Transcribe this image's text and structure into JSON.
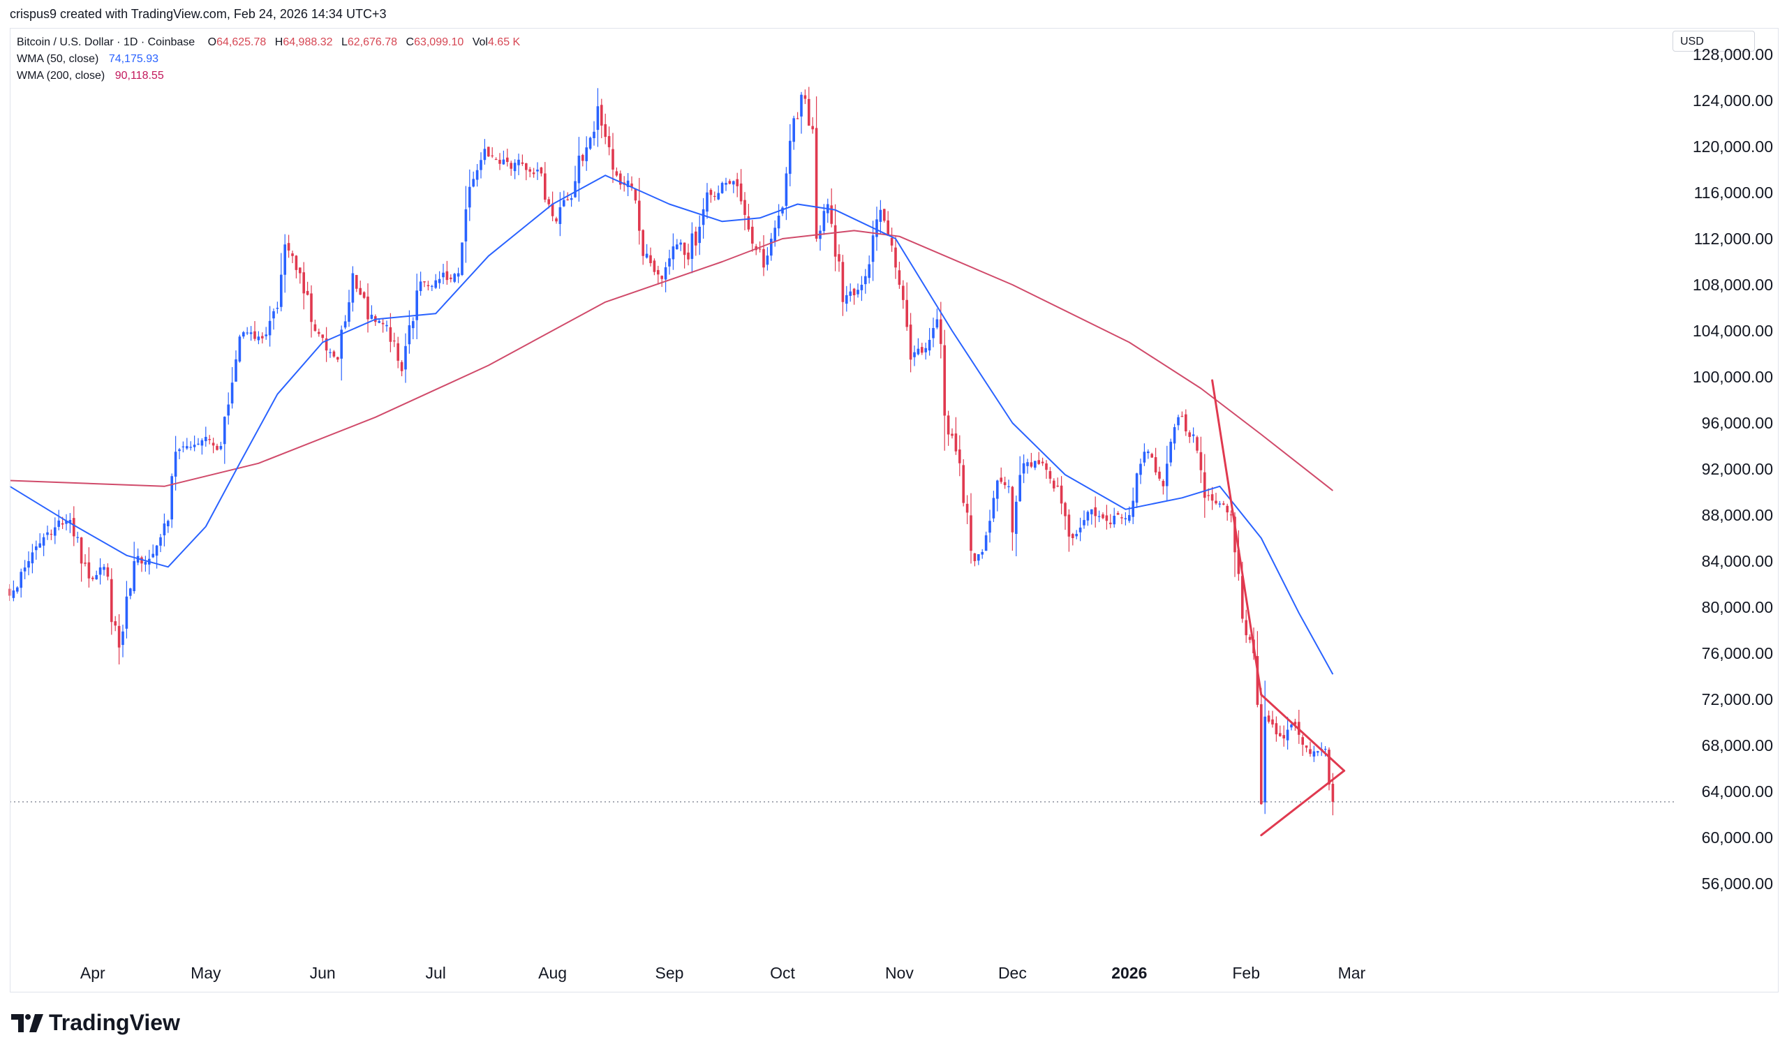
{
  "header": {
    "created_by": "crispus9 created with TradingView.com, Feb 24, 2026 14:34 UTC+3"
  },
  "legend": {
    "symbol": "Bitcoin / U.S. Dollar · 1D · Coinbase",
    "open_label": "O",
    "open": "64,625.78",
    "high_label": "H",
    "high": "64,988.32",
    "low_label": "L",
    "low": "62,676.78",
    "close_label": "C",
    "close": "63,099.10",
    "vol_label": "Vol",
    "vol": "4.65 K",
    "wma50_label": "WMA (50, close)",
    "wma50_value": "74,175.93",
    "wma200_label": "WMA (200, close)",
    "wma200_value": "90,118.55"
  },
  "currency": "USD",
  "brand": "TradingView",
  "colors": {
    "up": "#2962ff",
    "down": "#e0394f",
    "wma50": "#2962ff",
    "wma200": "#d04a6a",
    "trendline": "#e0394f",
    "legend_value": "#d64754",
    "wma50_legend": "#2962ff",
    "wma200_legend": "#c2185b"
  },
  "chart_data": {
    "type": "candlestick",
    "title": "Bitcoin / U.S. Dollar · 1D · Coinbase",
    "y_ticks": [
      "56,000.00",
      "60,000.00",
      "64,000.00",
      "68,000.00",
      "72,000.00",
      "76,000.00",
      "80,000.00",
      "84,000.00",
      "88,000.00",
      "92,000.00",
      "96,000.00",
      "100,000.00",
      "104,000.00",
      "108,000.00",
      "112,000.00",
      "116,000.00",
      "120,000.00",
      "124,000.00",
      "128,000.00"
    ],
    "y_range": [
      53000,
      131000
    ],
    "x_ticks": [
      {
        "label": "Apr",
        "date": "2025-04-01",
        "bold": false
      },
      {
        "label": "May",
        "date": "2025-05-01",
        "bold": false
      },
      {
        "label": "Jun",
        "date": "2025-06-01",
        "bold": false
      },
      {
        "label": "Jul",
        "date": "2025-07-01",
        "bold": false
      },
      {
        "label": "Aug",
        "date": "2025-08-01",
        "bold": false
      },
      {
        "label": "Sep",
        "date": "2025-09-01",
        "bold": false
      },
      {
        "label": "Oct",
        "date": "2025-10-01",
        "bold": false
      },
      {
        "label": "Nov",
        "date": "2025-11-01",
        "bold": false
      },
      {
        "label": "Dec",
        "date": "2025-12-01",
        "bold": false
      },
      {
        "label": "2026",
        "date": "2026-01-01",
        "bold": true
      },
      {
        "label": "Feb",
        "date": "2026-02-01",
        "bold": false
      },
      {
        "label": "Mar",
        "date": "2026-03-01",
        "bold": false
      }
    ],
    "close_anchors": [
      [
        "2025-03-10",
        81000
      ],
      [
        "2025-03-15",
        84000
      ],
      [
        "2025-03-20",
        86500
      ],
      [
        "2025-03-25",
        87500
      ],
      [
        "2025-03-31",
        82500
      ],
      [
        "2025-04-04",
        83500
      ],
      [
        "2025-04-08",
        76500
      ],
      [
        "2025-04-12",
        84000
      ],
      [
        "2025-04-16",
        84200
      ],
      [
        "2025-04-21",
        87500
      ],
      [
        "2025-04-23",
        93500
      ],
      [
        "2025-04-30",
        94500
      ],
      [
        "2025-05-05",
        94000
      ],
      [
        "2025-05-08",
        99500
      ],
      [
        "2025-05-10",
        103500
      ],
      [
        "2025-05-15",
        103500
      ],
      [
        "2025-05-20",
        106000
      ],
      [
        "2025-05-22",
        111500
      ],
      [
        "2025-05-26",
        109000
      ],
      [
        "2025-05-30",
        104000
      ],
      [
        "2025-06-05",
        101500
      ],
      [
        "2025-06-09",
        109000
      ],
      [
        "2025-06-13",
        105000
      ],
      [
        "2025-06-18",
        104500
      ],
      [
        "2025-06-22",
        100500
      ],
      [
        "2025-06-26",
        107500
      ],
      [
        "2025-07-02",
        108500
      ],
      [
        "2025-07-07",
        109000
      ],
      [
        "2025-07-10",
        116500
      ],
      [
        "2025-07-14",
        119800
      ],
      [
        "2025-07-18",
        118500
      ],
      [
        "2025-07-24",
        118500
      ],
      [
        "2025-07-28",
        118000
      ],
      [
        "2025-08-02",
        113500
      ],
      [
        "2025-08-07",
        117000
      ],
      [
        "2025-08-13",
        123500
      ],
      [
        "2025-08-17",
        118000
      ],
      [
        "2025-08-22",
        116500
      ],
      [
        "2025-08-25",
        110500
      ],
      [
        "2025-08-30",
        108500
      ],
      [
        "2025-09-03",
        111500
      ],
      [
        "2025-09-06",
        110200
      ],
      [
        "2025-09-12",
        115800
      ],
      [
        "2025-09-18",
        117000
      ],
      [
        "2025-09-22",
        112800
      ],
      [
        "2025-09-26",
        109500
      ],
      [
        "2025-09-30",
        114000
      ],
      [
        "2025-10-03",
        120500
      ],
      [
        "2025-10-06",
        124500
      ],
      [
        "2025-10-09",
        121500
      ],
      [
        "2025-10-10",
        112000
      ],
      [
        "2025-10-13",
        115000
      ],
      [
        "2025-10-17",
        106500
      ],
      [
        "2025-10-22",
        108000
      ],
      [
        "2025-10-27",
        114500
      ],
      [
        "2025-10-31",
        109500
      ],
      [
        "2025-11-04",
        101500
      ],
      [
        "2025-11-08",
        102500
      ],
      [
        "2025-11-11",
        105000
      ],
      [
        "2025-11-14",
        95000
      ],
      [
        "2025-11-17",
        92500
      ],
      [
        "2025-11-21",
        84000
      ],
      [
        "2025-11-25",
        87500
      ],
      [
        "2025-11-27",
        91000
      ],
      [
        "2025-11-30",
        90500
      ],
      [
        "2025-12-01",
        86500
      ],
      [
        "2025-12-04",
        92500
      ],
      [
        "2025-12-09",
        92500
      ],
      [
        "2025-12-13",
        90500
      ],
      [
        "2025-12-17",
        86000
      ],
      [
        "2025-12-22",
        88500
      ],
      [
        "2025-12-26",
        87500
      ],
      [
        "2026-01-01",
        88000
      ],
      [
        "2026-01-05",
        93500
      ],
      [
        "2026-01-10",
        90500
      ],
      [
        "2026-01-14",
        96500
      ],
      [
        "2026-01-18",
        95000
      ],
      [
        "2026-01-21",
        89500
      ],
      [
        "2026-01-25",
        89000
      ],
      [
        "2026-01-28",
        88000
      ],
      [
        "2026-01-31",
        79000
      ],
      [
        "2026-02-03",
        76000
      ],
      [
        "2026-02-05",
        62900
      ],
      [
        "2026-02-06",
        70500
      ],
      [
        "2026-02-10",
        68800
      ],
      [
        "2026-02-14",
        69800
      ],
      [
        "2026-02-17",
        67800
      ],
      [
        "2026-02-20",
        67500
      ],
      [
        "2026-02-22",
        67700
      ],
      [
        "2026-02-23",
        64600
      ],
      [
        "2026-02-24",
        63099
      ]
    ],
    "wma50": [
      [
        "2025-03-10",
        90500
      ],
      [
        "2025-03-25",
        87500
      ],
      [
        "2025-04-10",
        84500
      ],
      [
        "2025-04-21",
        83500
      ],
      [
        "2025-05-01",
        87000
      ],
      [
        "2025-05-10",
        92500
      ],
      [
        "2025-05-20",
        98500
      ],
      [
        "2025-06-01",
        103000
      ],
      [
        "2025-06-15",
        105000
      ],
      [
        "2025-07-01",
        105500
      ],
      [
        "2025-07-15",
        110500
      ],
      [
        "2025-08-01",
        115000
      ],
      [
        "2025-08-15",
        117500
      ],
      [
        "2025-09-01",
        115000
      ],
      [
        "2025-09-15",
        113500
      ],
      [
        "2025-09-25",
        113800
      ],
      [
        "2025-10-05",
        115000
      ],
      [
        "2025-10-15",
        114500
      ],
      [
        "2025-10-31",
        112000
      ],
      [
        "2025-11-15",
        104000
      ],
      [
        "2025-12-01",
        96000
      ],
      [
        "2025-12-15",
        91500
      ],
      [
        "2025-12-31",
        88500
      ],
      [
        "2026-01-15",
        89500
      ],
      [
        "2026-01-25",
        90500
      ],
      [
        "2026-02-05",
        86000
      ],
      [
        "2026-02-15",
        79500
      ],
      [
        "2026-02-24",
        74176
      ]
    ],
    "wma200": [
      [
        "2025-03-10",
        91000
      ],
      [
        "2025-04-20",
        90500
      ],
      [
        "2025-05-15",
        92500
      ],
      [
        "2025-06-15",
        96500
      ],
      [
        "2025-07-15",
        101000
      ],
      [
        "2025-08-15",
        106500
      ],
      [
        "2025-09-15",
        110000
      ],
      [
        "2025-10-01",
        112000
      ],
      [
        "2025-10-20",
        112700
      ],
      [
        "2025-11-01",
        112200
      ],
      [
        "2025-12-01",
        108000
      ],
      [
        "2026-01-01",
        103000
      ],
      [
        "2026-01-20",
        99000
      ],
      [
        "2026-02-05",
        95000
      ],
      [
        "2026-02-24",
        90119
      ]
    ],
    "current_price": 63099.1,
    "trendlines": [
      {
        "from": [
          "2026-01-23",
          99700
        ],
        "to": [
          "2026-02-05",
          72400
        ]
      },
      {
        "from": [
          "2026-02-05",
          72400
        ],
        "to": [
          "2026-02-27",
          65800
        ]
      },
      {
        "from": [
          "2026-02-05",
          60200
        ],
        "to": [
          "2026-02-27",
          65800
        ]
      }
    ]
  }
}
